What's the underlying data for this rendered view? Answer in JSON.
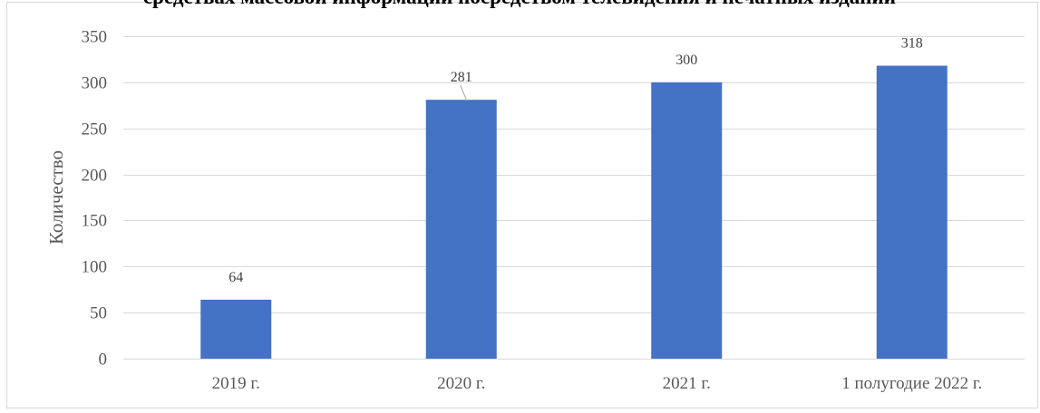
{
  "colors": {
    "bar": "#4472C4",
    "gridline": "#D9D9D9",
    "frame": "#D9D9D9",
    "tick_text": "#595959",
    "data_label_text": "#404040",
    "title_text": "#000000"
  },
  "chart_data": {
    "type": "bar",
    "title": "средствах массовой информации посредством телевидения и печатных изданий",
    "xlabel": "",
    "ylabel": "Количество",
    "categories": [
      "2019 г.",
      "2020 г.",
      "2021 г.",
      "1 полугодие 2022 г."
    ],
    "values": [
      64,
      281,
      300,
      318
    ],
    "data_labels": [
      "64",
      "281",
      "300",
      "318"
    ],
    "ylim": [
      0,
      350
    ],
    "yticks": [
      0,
      50,
      100,
      150,
      200,
      250,
      300,
      350
    ],
    "ytick_labels": [
      "0",
      "50",
      "100",
      "150",
      "200",
      "250",
      "300",
      "350"
    ],
    "grid": true,
    "legend": "none"
  }
}
